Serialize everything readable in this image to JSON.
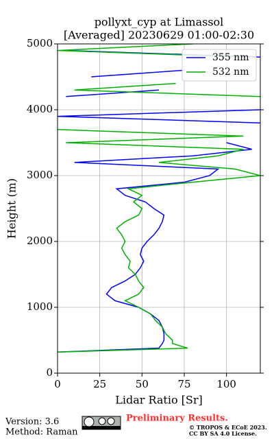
{
  "chart_data": {
    "type": "line",
    "title": "pollyxt_cyp at Limassol",
    "subtitle": "[Averaged] 20230629 01:00-02:30",
    "x_label": "Lidar Ratio [Sr]",
    "y_label": "Height (m)",
    "xlim": [
      0,
      120
    ],
    "xticks": [
      0,
      25,
      50,
      75,
      100
    ],
    "ylim": [
      0,
      5000
    ],
    "yticks": [
      0,
      1000,
      2000,
      3000,
      4000,
      5000
    ],
    "grid": true,
    "legend": "upper right",
    "y": [
      150,
      320,
      380,
      450,
      500,
      600,
      700,
      800,
      900,
      1000,
      1100,
      1200,
      1300,
      1400,
      1500,
      1600,
      1700,
      1800,
      1900,
      2000,
      2100,
      2200,
      2300,
      2400,
      2500,
      2600,
      2700,
      2800,
      2900,
      3000,
      3100,
      3200,
      3300,
      3400,
      3500,
      3600,
      3700,
      3800,
      3900,
      4000,
      4100,
      4200,
      4300,
      4400,
      4500,
      4600,
      4700,
      4800,
      4900,
      5000
    ],
    "series": [
      {
        "name": "355 nm",
        "color": "#0000ff",
        "values": [
          null,
          0,
          60,
          62,
          63,
          63,
          62,
          60,
          55,
          48,
          34,
          29,
          32,
          40,
          46,
          49,
          51,
          49,
          50,
          53,
          57,
          60,
          62,
          63,
          57,
          52,
          40,
          35,
          75,
          90,
          95,
          10,
          80,
          115,
          100,
          null,
          null,
          120,
          0,
          120,
          null,
          5,
          60,
          null,
          20,
          75,
          null,
          120,
          5,
          null
        ]
      },
      {
        "name": "532 nm",
        "color": "#00b000",
        "values": [
          null,
          0,
          77,
          68,
          68,
          64,
          62,
          58,
          55,
          48,
          40,
          48,
          51,
          48,
          46,
          42,
          43,
          40,
          38,
          40,
          38,
          35,
          40,
          48,
          50,
          45,
          50,
          42,
          80,
          120,
          105,
          60,
          95,
          110,
          5,
          110,
          0,
          null,
          null,
          null,
          null,
          120,
          10,
          70,
          null,
          40,
          null,
          110,
          0,
          80
        ]
      }
    ]
  },
  "footer": {
    "version": "Version: 3.6",
    "method": "Method: Raman",
    "status": "Preliminary Results.",
    "copyright": "© TROPOS & ECoE 2023.",
    "license": "CC BY SA 4.0 License."
  }
}
